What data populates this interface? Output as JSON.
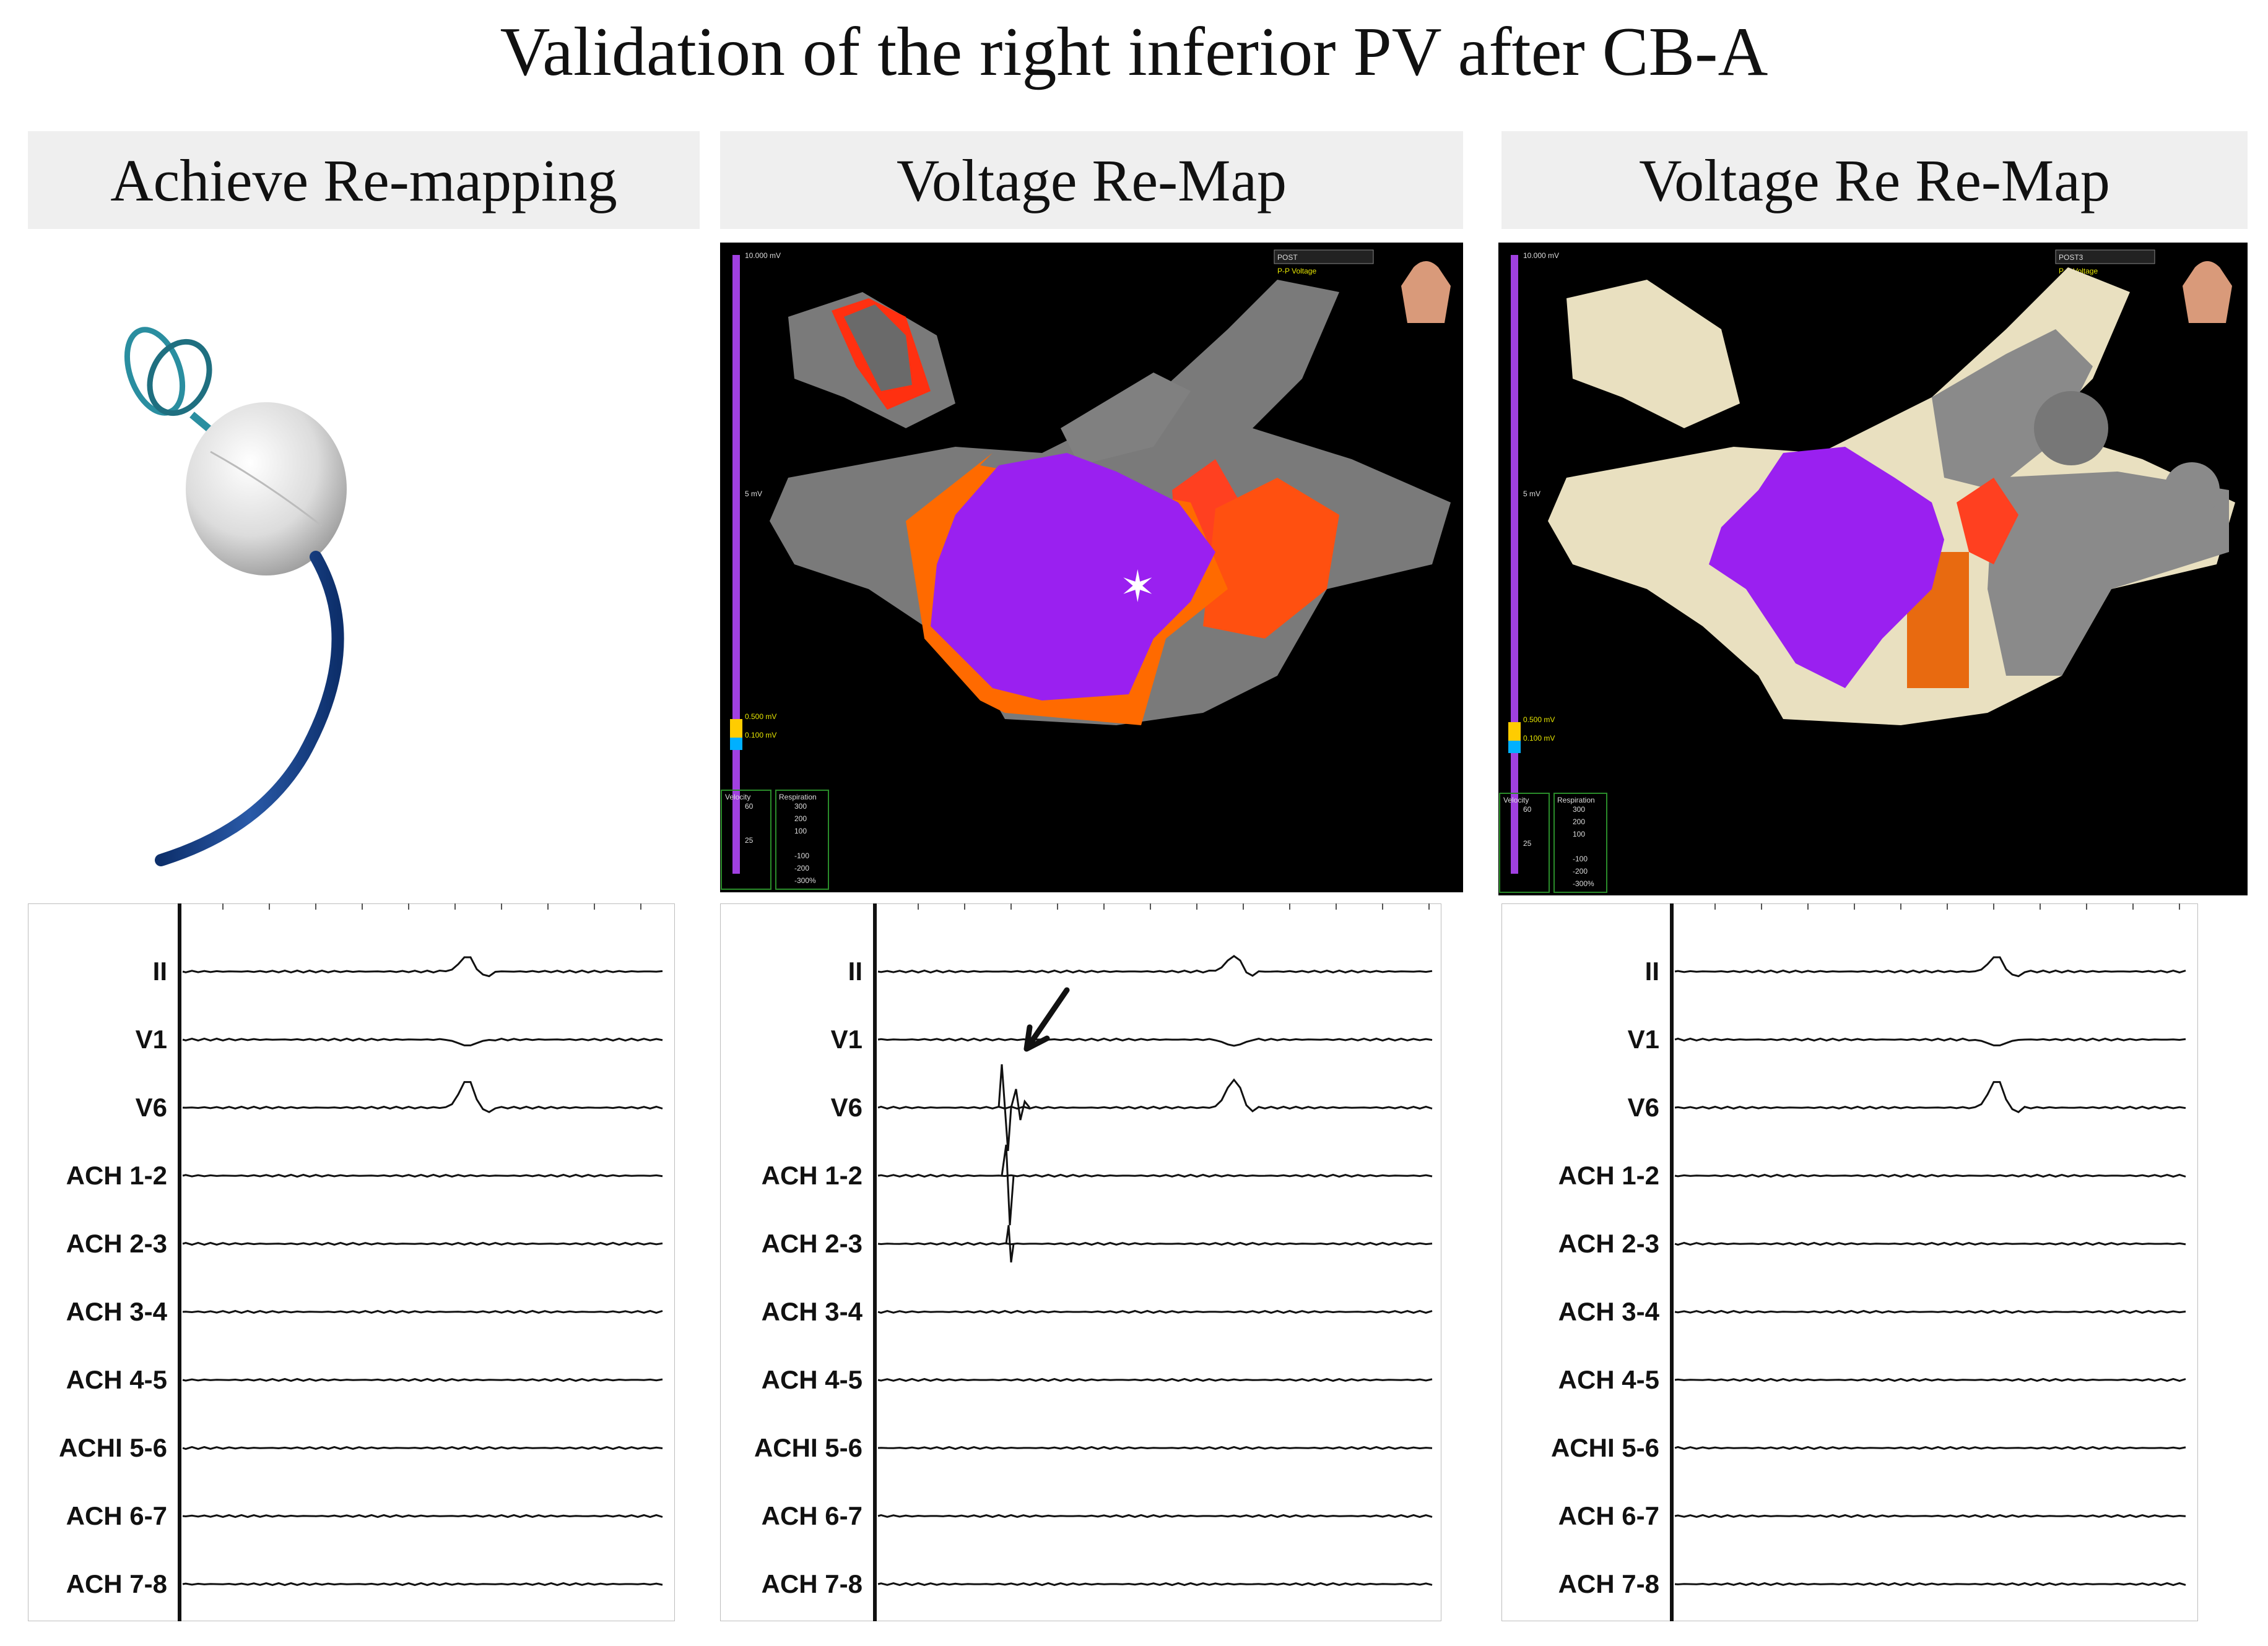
{
  "title": "Validation of the right inferior PV after CB-A",
  "panels": [
    {
      "header": "Achieve Re-mapping"
    },
    {
      "header": "Voltage Re-Map",
      "map": {
        "scale_top": "10.000 mV",
        "scale_mid": "5 mV",
        "scale_b1": "0.500 mV",
        "scale_b2": "0.100 mV",
        "map_name": "POST",
        "map_type": "P-P Voltage",
        "vel_label": "Velocity",
        "vel_top": "60",
        "vel_mid": "25",
        "resp_label": "Respiration",
        "resp_vals": [
          "300",
          "200",
          "100",
          "-100",
          "-200",
          "-300%"
        ]
      }
    },
    {
      "header": "Voltage Re Re-Map",
      "map": {
        "scale_top": "10.000 mV",
        "scale_mid": "5 mV",
        "scale_b1": "0.500 mV",
        "scale_b2": "0.100 mV",
        "map_name": "POST3",
        "map_type": "P-P Voltage",
        "vel_label": "Velocity",
        "vel_top": "60",
        "vel_mid": "25",
        "resp_label": "Respiration",
        "resp_vals": [
          "300",
          "200",
          "100",
          "-100",
          "-200",
          "-300%"
        ]
      }
    }
  ],
  "leads": [
    "II",
    "V1",
    "V6",
    "ACH  1-2",
    "ACH 2-3",
    "ACH  3-4",
    "ACH 4-5",
    "ACHI  5-6",
    "ACH 6-7",
    "ACH 7-8"
  ]
}
